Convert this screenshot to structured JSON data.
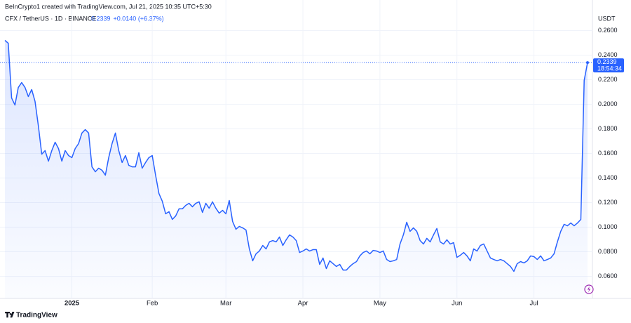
{
  "header": {
    "credit": "BeInCrypto1 created with TradingView.com, Jul 21, 2025 10:35 UTC+5:30",
    "symbol": "CFX / TetherUS · 1D · BINANCE",
    "price": "0.2339",
    "change": "+0.0140 (+6.37%)",
    "currency": "USDT",
    "brand": "TradingView"
  },
  "chart_data": {
    "type": "line",
    "color": "#2962ff",
    "grid": true,
    "countdown": "18:54:34",
    "categories": [
      null,
      null,
      null,
      null,
      null,
      null,
      null,
      null,
      null,
      null,
      null,
      null,
      null,
      null,
      null,
      null,
      null,
      null,
      null,
      null,
      "2025",
      null,
      null,
      null,
      null,
      null,
      null,
      null,
      null,
      null,
      null,
      null,
      null,
      null,
      null,
      null,
      null,
      null,
      null,
      null,
      null,
      null,
      null,
      null,
      "Feb",
      null,
      null,
      null,
      null,
      null,
      null,
      null,
      null,
      null,
      null,
      null,
      null,
      null,
      null,
      null,
      null,
      null,
      null,
      null,
      null,
      null,
      "Mar",
      null,
      null,
      null,
      null,
      null,
      null,
      null,
      null,
      null,
      null,
      null,
      null,
      null,
      null,
      null,
      null,
      null,
      null,
      null,
      null,
      null,
      null,
      "Apr",
      null,
      null,
      null,
      null,
      null,
      null,
      null,
      null,
      null,
      null,
      null,
      null,
      null,
      null,
      null,
      null,
      null,
      null,
      null,
      null,
      null,
      null,
      "May",
      null,
      null,
      null,
      null,
      null,
      null,
      null,
      null,
      null,
      null,
      null,
      null,
      null,
      null,
      null,
      null,
      null,
      null,
      null,
      null,
      null,
      null,
      "Jun",
      null,
      null,
      null,
      null,
      null,
      null,
      null,
      null,
      null,
      null,
      null,
      null,
      null,
      null,
      null,
      null,
      null,
      null,
      null,
      null,
      null,
      null,
      "Jul",
      null,
      null,
      null,
      null,
      null,
      null,
      null,
      null,
      null,
      null,
      null,
      null,
      null,
      null,
      null,
      null
    ],
    "series": [
      {
        "name": "CFX / TetherUS",
        "color": "#2962ff",
        "values": [
          0.252,
          0.2497,
          0.2051,
          0.1994,
          0.2137,
          0.2177,
          0.2137,
          0.2063,
          0.212,
          0.2023,
          0.1823,
          0.1594,
          0.1623,
          0.1537,
          0.1623,
          0.1691,
          0.164,
          0.1537,
          0.1623,
          0.1583,
          0.1566,
          0.164,
          0.168,
          0.1766,
          0.1794,
          0.1766,
          0.1491,
          0.1451,
          0.148,
          0.1463,
          0.1423,
          0.1566,
          0.168,
          0.1766,
          0.1623,
          0.1526,
          0.1583,
          0.1503,
          0.1491,
          0.1491,
          0.1606,
          0.148,
          0.1526,
          0.1566,
          0.1583,
          0.1423,
          0.1274,
          0.1211,
          0.1109,
          0.1126,
          0.1063,
          0.1091,
          0.1149,
          0.1149,
          0.1177,
          0.1194,
          0.1166,
          0.1194,
          0.1206,
          0.112,
          0.1194,
          0.1154,
          0.1206,
          0.1154,
          0.1114,
          0.1137,
          0.1109,
          0.1217,
          0.1046,
          0.0983,
          0.1006,
          0.0994,
          0.0977,
          0.0823,
          0.0726,
          0.0783,
          0.0806,
          0.0851,
          0.0823,
          0.088,
          0.0891,
          0.088,
          0.092,
          0.0851,
          0.0897,
          0.0937,
          0.092,
          0.0891,
          0.0794,
          0.0806,
          0.0823,
          0.0806,
          0.0817,
          0.0817,
          0.0697,
          0.0749,
          0.0663,
          0.0726,
          0.0703,
          0.068,
          0.0697,
          0.0651,
          0.0651,
          0.068,
          0.0703,
          0.072,
          0.0766,
          0.0794,
          0.0806,
          0.0783,
          0.0811,
          0.0806,
          0.0794,
          0.0806,
          0.0737,
          0.072,
          0.0726,
          0.0737,
          0.0863,
          0.0937,
          0.104,
          0.0966,
          0.0994,
          0.0966,
          0.0891,
          0.0863,
          0.0909,
          0.088,
          0.0937,
          0.0989,
          0.088,
          0.0863,
          0.0897,
          0.0863,
          0.0874,
          0.0754,
          0.0771,
          0.0794,
          0.0766,
          0.0726,
          0.0823,
          0.0806,
          0.0851,
          0.0863,
          0.0806,
          0.0749,
          0.0737,
          0.0726,
          0.0737,
          0.0726,
          0.0703,
          0.068,
          0.064,
          0.0703,
          0.072,
          0.0709,
          0.0726,
          0.0766,
          0.076,
          0.0737,
          0.0766,
          0.0726,
          0.0737,
          0.0749,
          0.0783,
          0.088,
          0.0966,
          0.1023,
          0.1011,
          0.1034,
          0.1011,
          0.1034,
          0.1063,
          0.2194,
          0.2339
        ]
      }
    ],
    "ylim": [
      0.042,
      0.274
    ],
    "yticks": [
      {
        "value": 0.06,
        "label": "0.0600"
      },
      {
        "value": 0.08,
        "label": "0.0800"
      },
      {
        "value": 0.1,
        "label": "0.1000"
      },
      {
        "value": 0.12,
        "label": "0.1200"
      },
      {
        "value": 0.14,
        "label": "0.1400"
      },
      {
        "value": 0.16,
        "label": "0.1600"
      },
      {
        "value": 0.18,
        "label": "0.1800"
      },
      {
        "value": 0.2,
        "label": "0.2000"
      },
      {
        "value": 0.22,
        "label": "0.2200"
      },
      {
        "value": 0.24,
        "label": "0.2400"
      },
      {
        "value": 0.26,
        "label": "0.2600"
      }
    ]
  }
}
